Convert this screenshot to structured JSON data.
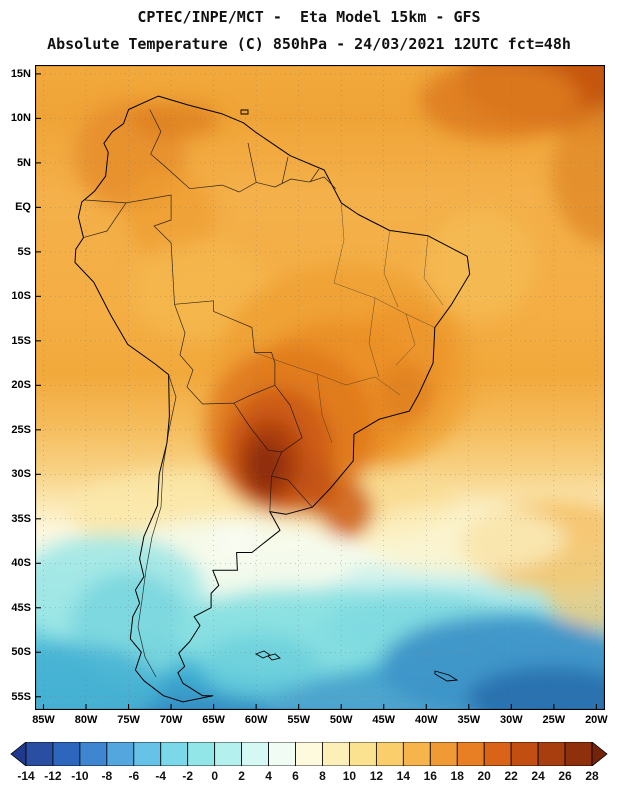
{
  "header": {
    "title_line1": "CPTEC/INPE/MCT -  Eta Model 15km - GFS",
    "title_line2": "Absolute Temperature (C) 850hPa - 24/03/2021 12UTC fct=48h"
  },
  "map": {
    "lat_labels": [
      "15N",
      "10N",
      "5N",
      "EQ",
      "5S",
      "10S",
      "15S",
      "20S",
      "25S",
      "30S",
      "35S",
      "40S",
      "45S",
      "50S",
      "55S"
    ],
    "lon_labels": [
      "85W",
      "80W",
      "75W",
      "70W",
      "65W",
      "60W",
      "55W",
      "50W",
      "45W",
      "40W",
      "35W",
      "30W",
      "25W",
      "20W"
    ],
    "region": "South America",
    "field": "Absolute Temperature",
    "units": "C",
    "level": "850hPa",
    "valid": "24/03/2021 12UTC",
    "forecast": "fct=48h"
  },
  "colorbar": {
    "ticks": [
      "-14",
      "-12",
      "-10",
      "-8",
      "-6",
      "-4",
      "-2",
      "0",
      "2",
      "4",
      "6",
      "8",
      "10",
      "12",
      "14",
      "16",
      "18",
      "20",
      "22",
      "24",
      "26",
      "28"
    ],
    "cell_colors": [
      "#2A4FA2",
      "#2E66BE",
      "#3E86CF",
      "#53A6DE",
      "#66C2E6",
      "#7AD8E8",
      "#92E6E8",
      "#B4F0EE",
      "#D6F8F4",
      "#F0FCF4",
      "#FDFADE",
      "#FCF0B8",
      "#FBE291",
      "#F9CE6B",
      "#F5B44C",
      "#F09A36",
      "#E87F24",
      "#D96317",
      "#C24E11",
      "#A83E0E",
      "#8F300C"
    ],
    "left_arrow_color": "#20398F",
    "right_arrow_color": "#72230A",
    "range": [
      -14,
      28
    ],
    "units": "C"
  }
}
